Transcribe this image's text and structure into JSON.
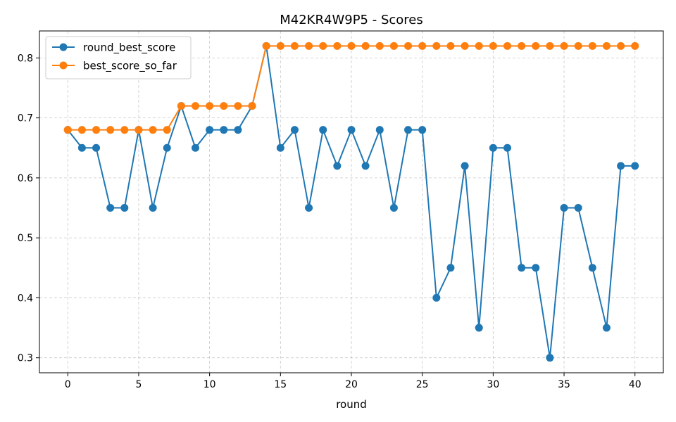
{
  "chart_data": {
    "type": "line",
    "title": "M42KR4W9P5 - Scores",
    "xlabel": "round",
    "ylabel": "",
    "xlim": [
      -2,
      42
    ],
    "ylim": [
      0.275,
      0.845
    ],
    "x_ticks": [
      0,
      5,
      10,
      15,
      20,
      25,
      30,
      35,
      40
    ],
    "y_ticks": [
      0.3,
      0.4,
      0.5,
      0.6,
      0.7,
      0.8
    ],
    "x_tick_labels": [
      "0",
      "5",
      "10",
      "15",
      "20",
      "25",
      "30",
      "35",
      "40"
    ],
    "y_tick_labels": [
      "0.3",
      "0.4",
      "0.5",
      "0.6",
      "0.7",
      "0.8"
    ],
    "grid": true,
    "legend_position": "top-left",
    "x": [
      0,
      1,
      2,
      3,
      4,
      5,
      6,
      7,
      8,
      9,
      10,
      11,
      12,
      13,
      14,
      15,
      16,
      17,
      18,
      19,
      20,
      21,
      22,
      23,
      24,
      25,
      26,
      27,
      28,
      29,
      30,
      31,
      32,
      33,
      34,
      35,
      36,
      37,
      38,
      39,
      40
    ],
    "series": [
      {
        "name": "round_best_score",
        "color": "#1f77b4",
        "values": [
          0.68,
          0.65,
          0.65,
          0.55,
          0.55,
          0.68,
          0.55,
          0.65,
          0.72,
          0.65,
          0.68,
          0.68,
          0.68,
          0.72,
          0.82,
          0.65,
          0.68,
          0.55,
          0.68,
          0.62,
          0.68,
          0.62,
          0.68,
          0.55,
          0.68,
          0.68,
          0.4,
          0.45,
          0.62,
          0.35,
          0.65,
          0.65,
          0.45,
          0.45,
          0.3,
          0.55,
          0.55,
          0.45,
          0.35,
          0.62,
          0.62
        ]
      },
      {
        "name": "best_score_so_far",
        "color": "#ff7f0e",
        "values": [
          0.68,
          0.68,
          0.68,
          0.68,
          0.68,
          0.68,
          0.68,
          0.68,
          0.72,
          0.72,
          0.72,
          0.72,
          0.72,
          0.72,
          0.82,
          0.82,
          0.82,
          0.82,
          0.82,
          0.82,
          0.82,
          0.82,
          0.82,
          0.82,
          0.82,
          0.82,
          0.82,
          0.82,
          0.82,
          0.82,
          0.82,
          0.82,
          0.82,
          0.82,
          0.82,
          0.82,
          0.82,
          0.82,
          0.82,
          0.82,
          0.82
        ]
      }
    ]
  }
}
